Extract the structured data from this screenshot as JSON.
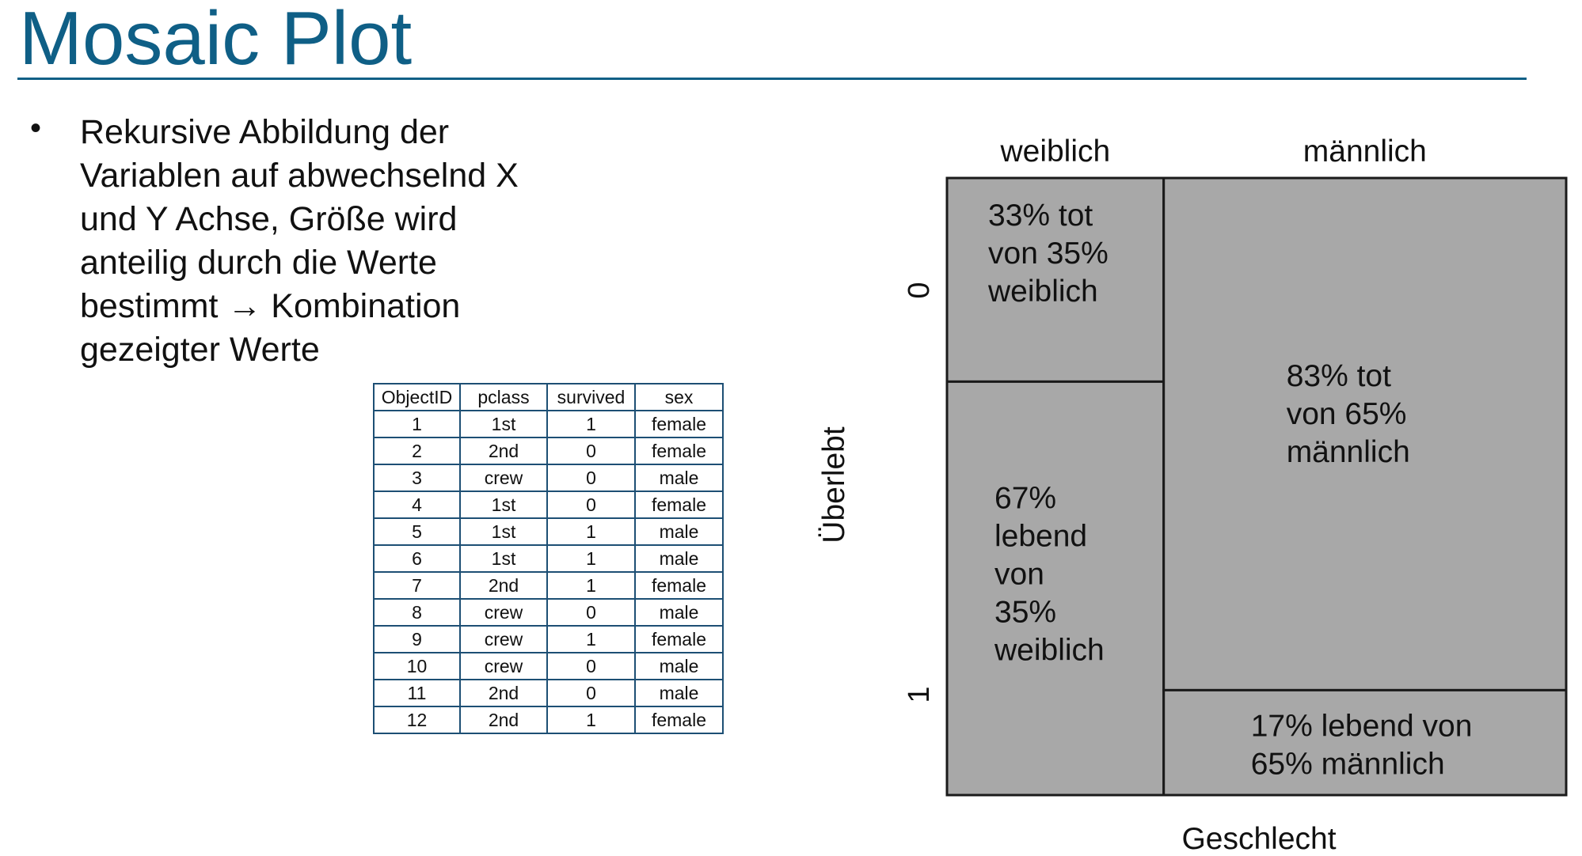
{
  "slide": {
    "title": "Mosaic Plot",
    "bullet_lines": [
      "Rekursive Abbildung der",
      "Variablen auf abwechselnd X",
      "und Y Achse, Größe wird",
      "anteilig durch die Werte",
      "bestimmt → Kombination",
      "gezeigter Werte"
    ]
  },
  "table": {
    "headers": [
      "ObjectID",
      "pclass",
      "survived",
      "sex"
    ],
    "rows": [
      [
        "1",
        "1st",
        "1",
        "female"
      ],
      [
        "2",
        "2nd",
        "0",
        "female"
      ],
      [
        "3",
        "crew",
        "0",
        "male"
      ],
      [
        "4",
        "1st",
        "0",
        "female"
      ],
      [
        "5",
        "1st",
        "1",
        "male"
      ],
      [
        "6",
        "1st",
        "1",
        "male"
      ],
      [
        "7",
        "2nd",
        "1",
        "female"
      ],
      [
        "8",
        "crew",
        "0",
        "male"
      ],
      [
        "9",
        "crew",
        "1",
        "female"
      ],
      [
        "10",
        "crew",
        "0",
        "male"
      ],
      [
        "11",
        "2nd",
        "0",
        "male"
      ],
      [
        "12",
        "2nd",
        "1",
        "female"
      ]
    ]
  },
  "chart_data": {
    "type": "mosaic",
    "xlabel": "Geschlecht",
    "ylabel": "Überlebt",
    "x_categories": [
      "weiblich",
      "männlich"
    ],
    "x_shares": [
      0.35,
      0.65
    ],
    "y_categories": [
      "0",
      "1"
    ],
    "cells": [
      {
        "x": "weiblich",
        "y": "0",
        "share": 0.33,
        "label_lines": [
          "33% tot",
          "von 35%",
          "weiblich"
        ]
      },
      {
        "x": "weiblich",
        "y": "1",
        "share": 0.67,
        "label_lines": [
          "67%",
          "lebend",
          "von",
          "35%",
          "weiblich"
        ]
      },
      {
        "x": "männlich",
        "y": "0",
        "share": 0.83,
        "label_lines": [
          "83% tot",
          "von 65%",
          "männlich"
        ]
      },
      {
        "x": "männlich",
        "y": "1",
        "share": 0.17,
        "label_lines": [
          "17% lebend von",
          "65% männlich"
        ]
      }
    ],
    "colors": {
      "fill": "#a8a8a8",
      "stroke": "#1a1a1a"
    }
  }
}
